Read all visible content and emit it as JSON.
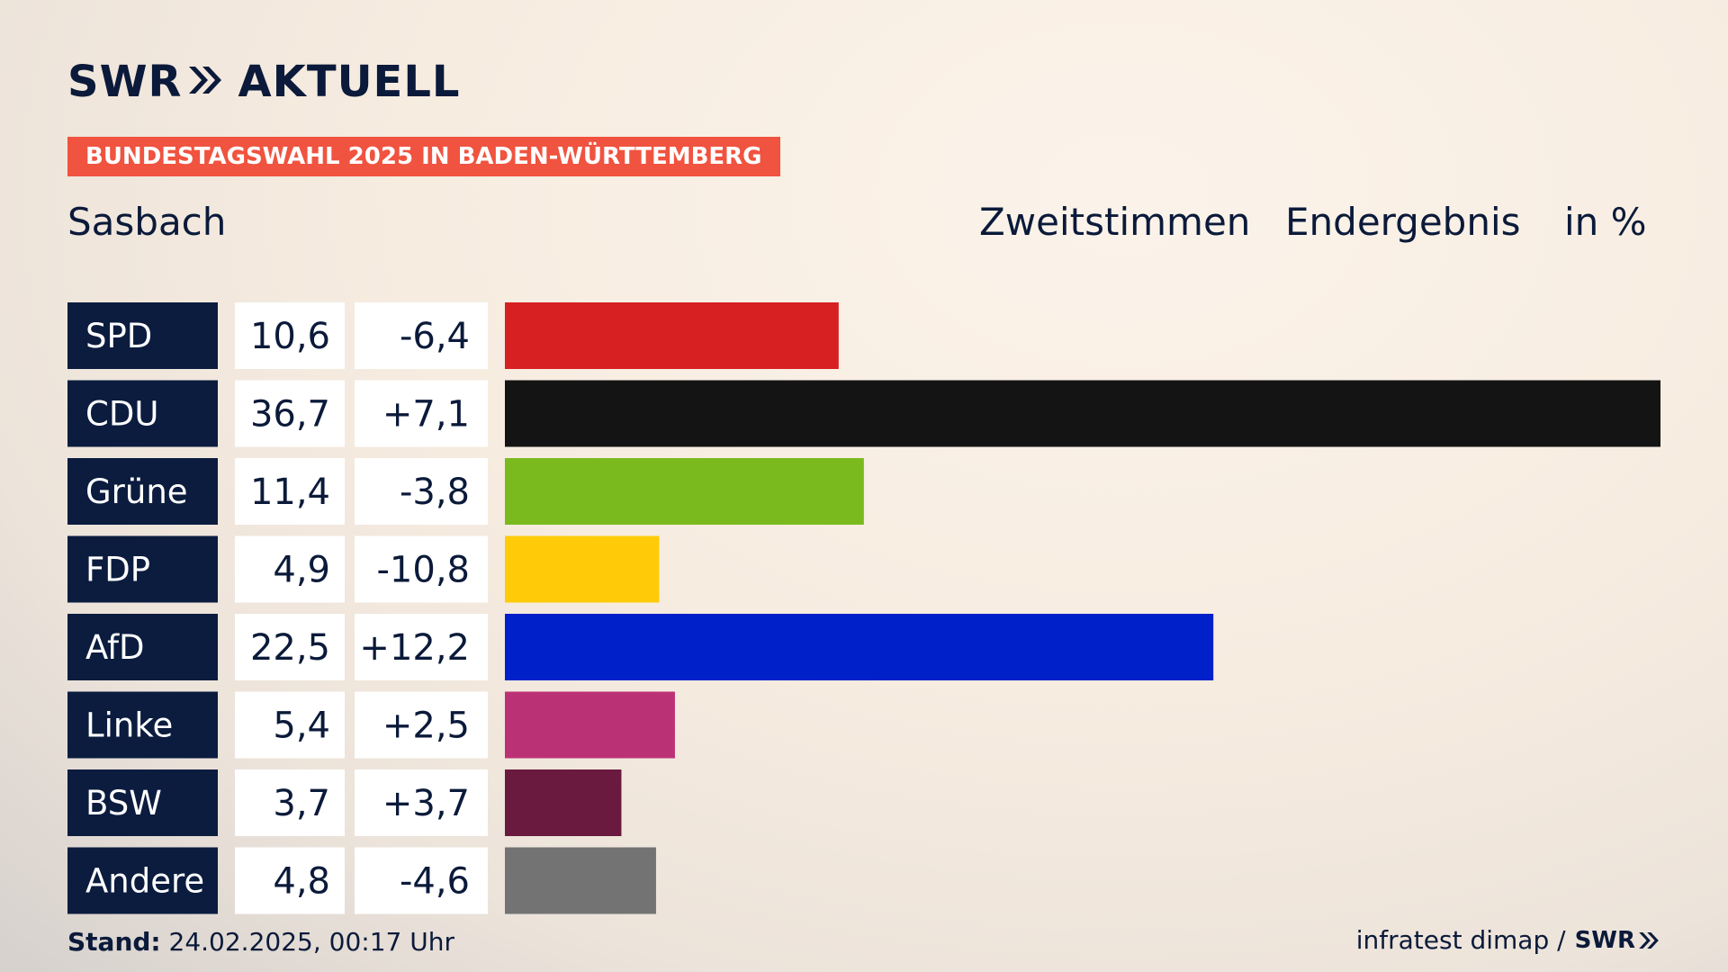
{
  "brand": {
    "swr": "SWR",
    "aktuell": "AKTUELL"
  },
  "banner": "BUNDESTAGSWAHL 2025 IN BADEN-WÜRTTEMBERG",
  "region": "Sasbach",
  "header": {
    "col1": "Zweitstimmen",
    "col2": "Endergebnis",
    "col3": "in %"
  },
  "footer": {
    "stand_label": "Stand:",
    "stand_value": " 24.02.2025, 00:17 Uhr",
    "source": "infratest dimap /",
    "swr_small": "SWR"
  },
  "chart_data": {
    "type": "bar",
    "orientation": "horizontal",
    "categories": [
      "SPD",
      "CDU",
      "Grüne",
      "FDP",
      "AfD",
      "Linke",
      "BSW",
      "Andere"
    ],
    "series": [
      {
        "values": [
          10.6,
          36.7,
          11.4,
          4.9,
          22.5,
          5.4,
          3.7,
          4.8
        ]
      }
    ],
    "value_labels": [
      "10,6",
      "36,7",
      "11,4",
      "4,9",
      "22,5",
      "5,4",
      "3,7",
      "4,8"
    ],
    "diff_labels": [
      "-6,4",
      "+7,1",
      "-3,8",
      "-10,8",
      "+12,2",
      "+2,5",
      "+3,7",
      "-4,6"
    ],
    "colors": [
      "#d62021",
      "#141414",
      "#7aba1f",
      "#ffcb08",
      "#0020c9",
      "#bb3176",
      "#6a1a3e",
      "#737373"
    ],
    "xlim": [
      0,
      36.7
    ],
    "grid": false,
    "legend": "none"
  }
}
